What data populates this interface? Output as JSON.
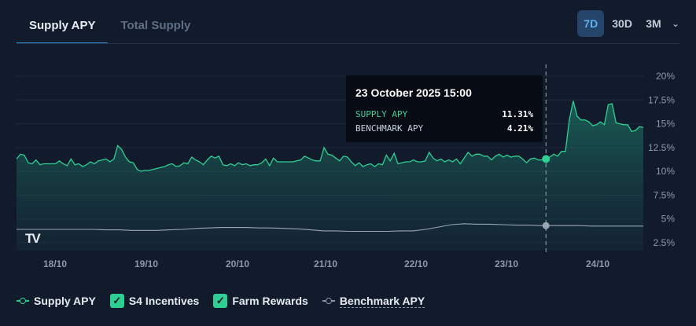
{
  "tabs": [
    {
      "label": "Supply APY",
      "active": true
    },
    {
      "label": "Total Supply",
      "active": false
    }
  ],
  "range": {
    "options": [
      "7D",
      "30D",
      "3M"
    ],
    "selected": "7D"
  },
  "tooltip": {
    "title": "23 October 2025 15:00",
    "rows": [
      {
        "label": "SUPPLY APY",
        "value": "11.31%"
      },
      {
        "label": "BENCHMARK APY",
        "value": "4.21%"
      }
    ]
  },
  "legend": {
    "supply": "Supply APY",
    "s4": "S4 Incentives",
    "farm": "Farm Rewards",
    "bench": "Benchmark APY"
  },
  "logo_text": "TV",
  "colors": {
    "background": "#121b2b",
    "supply": "#2fcf93",
    "benchmark": "#8a96a6",
    "accent": "#3b8fd6"
  },
  "chart_data": {
    "type": "area",
    "x_ticks": [
      "18/10",
      "19/10",
      "20/10",
      "21/10",
      "22/10",
      "23/10",
      "24/10"
    ],
    "y_ticks": [
      "20%",
      "17.5%",
      "15%",
      "12.5%",
      "10%",
      "7.5%",
      "5%",
      "2.5%"
    ],
    "y_range": [
      2.5,
      20
    ],
    "grid": true,
    "hover_index": 136,
    "series": [
      {
        "name": "Supply APY",
        "values": [
          11.3,
          11.8,
          11.7,
          10.9,
          10.8,
          11.2,
          10.7,
          10.8,
          10.8,
          10.8,
          10.8,
          11.1,
          10.8,
          10.6,
          11.3,
          10.7,
          10.8,
          10.5,
          10.7,
          11,
          10.8,
          11.1,
          11.2,
          11.3,
          11,
          11.3,
          12.7,
          12.3,
          11.5,
          11,
          10.9,
          10.2,
          10,
          10.1,
          10.1,
          10.2,
          10.3,
          10.4,
          10.5,
          10.7,
          10.8,
          10.5,
          10.6,
          10.9,
          10.8,
          11.5,
          11.2,
          11,
          10.7,
          11.2,
          11.6,
          11.4,
          11.6,
          10.7,
          10.6,
          10.8,
          10.6,
          10.9,
          10.7,
          10.8,
          10.6,
          10.7,
          10.7,
          10.9,
          11.3,
          10.6,
          11.4,
          11,
          11,
          11,
          11,
          11,
          11.1,
          11.2,
          11.6,
          11.4,
          11.2,
          11.1,
          11.1,
          12.5,
          11.8,
          11.7,
          11.4,
          11.1,
          11.6,
          11.5,
          11,
          10.6,
          10.9,
          10.5,
          10.7,
          10.8,
          10.5,
          10.8,
          10.7,
          11.7,
          11.1,
          11.9,
          10.8,
          10.9,
          11,
          11,
          11.2,
          11,
          11,
          11.1,
          12,
          11.4,
          11.1,
          11.3,
          11,
          11.2,
          11,
          11.3,
          10.8,
          11.4,
          12,
          11.6,
          11.8,
          11.8,
          11.6,
          11.6,
          11.2,
          11.6,
          11.8,
          11.5,
          11.7,
          11.5,
          11.6,
          11.6,
          11.3,
          10.9,
          11.3,
          11.4,
          11.2,
          11.2,
          11.3,
          11.5,
          11.8,
          11.6,
          12.1,
          12.1,
          15.4,
          17.4,
          15.8,
          15.4,
          15.4,
          15.2,
          14.8,
          14.9,
          15.2,
          14.9,
          17,
          17.1,
          15.1,
          15,
          14.9,
          14.9,
          14.2,
          14.3,
          14.7,
          14.6
        ]
      },
      {
        "name": "Benchmark APY",
        "values": [
          3.9,
          3.9,
          3.9,
          3.9,
          3.9,
          3.9,
          3.9,
          3.85,
          3.85,
          3.8,
          3.8,
          3.8,
          3.85,
          3.9,
          4,
          4.05,
          4.1,
          4.1,
          4.1,
          4.05,
          4.05,
          4,
          3.95,
          3.85,
          3.75,
          3.75,
          3.7,
          3.7,
          3.7,
          3.7,
          3.75,
          3.75,
          3.9,
          4.15,
          4.4,
          4.5,
          4.45,
          4.45,
          4.4,
          4.35,
          4.35,
          4.3,
          4.3,
          4.3,
          4.3,
          4.25,
          4.25,
          4.25,
          4.25,
          4.25
        ]
      }
    ]
  }
}
